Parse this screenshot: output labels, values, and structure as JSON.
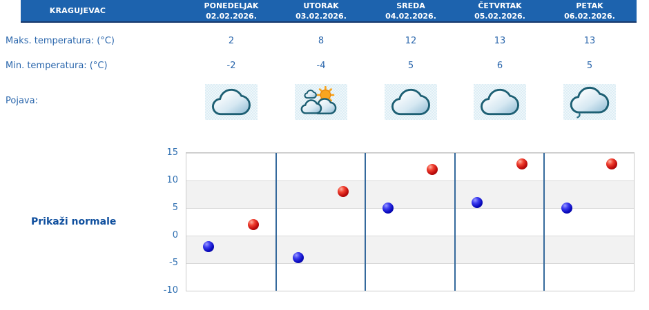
{
  "header": {
    "city": "KRAGUJEVAC",
    "days": [
      {
        "name": "PONEDELJAK",
        "date": "02.02.2026."
      },
      {
        "name": "UTORAK",
        "date": "03.02.2026."
      },
      {
        "name": "SREDA",
        "date": "04.02.2026."
      },
      {
        "name": "ČETVRTAK",
        "date": "05.02.2026."
      },
      {
        "name": "PETAK",
        "date": "06.02.2026."
      }
    ]
  },
  "table": {
    "max_temp_label": "Maks. temperatura: (°C)",
    "max_temp_values": [
      "2",
      "8",
      "12",
      "13",
      "13"
    ],
    "min_temp_label": "Min. temperatura: (°C)",
    "min_temp_values": [
      "-2",
      "-4",
      "5",
      "6",
      "5"
    ],
    "phenomenon_label": "Pojava:",
    "phenomenon_icons": [
      "cloudy-icon",
      "partly-cloudy-icon",
      "cloudy-icon",
      "cloudy-icon",
      "cloud-drizzle-icon"
    ]
  },
  "controls": {
    "show_normals_label": "Prikaži normale"
  },
  "chart_data": {
    "type": "scatter",
    "categories": [
      "02.02.2026.",
      "03.02.2026.",
      "04.02.2026.",
      "05.02.2026.",
      "06.02.2026."
    ],
    "series": [
      {
        "id": "max",
        "name": "Maks. temperatura (°C)",
        "color": "#c00d0d",
        "values": [
          2,
          8,
          12,
          13,
          13
        ]
      },
      {
        "id": "min",
        "name": "Min. temperatura (°C)",
        "color": "#0b0bbf",
        "values": [
          -2,
          -4,
          5,
          6,
          5
        ]
      }
    ],
    "ylim": [
      -10,
      15
    ],
    "yticks": [
      15,
      10,
      5,
      0,
      -5,
      -10
    ],
    "grid": "horizontal-bands",
    "band_colors": [
      "#ffffff",
      "#f2f2f2"
    ],
    "separator_color": "#35699c",
    "legend": "none"
  },
  "colors": {
    "header_bg": "#1d63ae",
    "header_border": "#17386b",
    "header_text": "#ffffff",
    "body_text": "#2a66ac",
    "tick_text": "#2f6fb1",
    "link_text": "#0f4f9e",
    "icon_box_bg": "#dcedf5"
  }
}
